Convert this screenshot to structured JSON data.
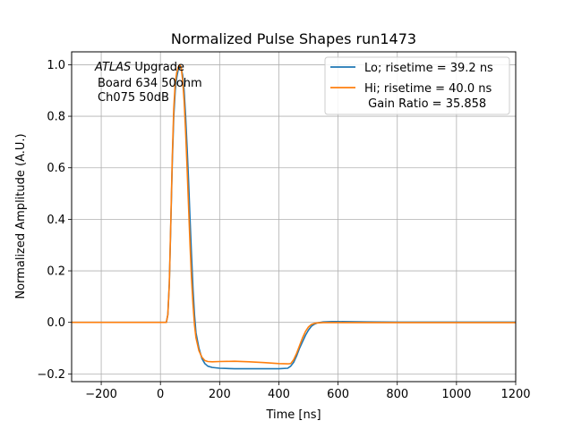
{
  "chart_data": {
    "type": "line",
    "title": "Normalized Pulse Shapes run1473",
    "xlabel": "Time [ns]",
    "ylabel": "Normalized Amplitude (A.U.)",
    "xlim": [
      -300,
      1200
    ],
    "ylim": [
      -0.23,
      1.05
    ],
    "xticks": [
      -200,
      0,
      200,
      400,
      600,
      800,
      1000,
      1200
    ],
    "yticks": [
      -0.2,
      0.0,
      0.2,
      0.4,
      0.6,
      0.8,
      1.0
    ],
    "grid": true,
    "legend_position": "top-right",
    "annotation": {
      "italic": "ATLAS",
      "rest": " Upgrade",
      "line2": "Board 634 50ohm",
      "line3": "Ch075 50dB"
    },
    "series": [
      {
        "name": "Lo; risetime = 39.2 ns",
        "color": "#1f77b4",
        "x": [
          -300,
          0,
          20,
          25,
          30,
          35,
          40,
          45,
          50,
          55,
          60,
          65,
          70,
          75,
          80,
          85,
          90,
          95,
          100,
          105,
          110,
          115,
          120,
          130,
          140,
          150,
          160,
          175,
          200,
          250,
          300,
          350,
          400,
          430,
          440,
          450,
          460,
          470,
          480,
          490,
          500,
          510,
          520,
          530,
          550,
          580,
          600,
          700,
          800,
          1000,
          1200
        ],
        "y": [
          0.0,
          0.0,
          0.0,
          0.03,
          0.15,
          0.38,
          0.62,
          0.8,
          0.9,
          0.95,
          0.98,
          0.99,
          0.985,
          0.96,
          0.9,
          0.8,
          0.68,
          0.55,
          0.4,
          0.26,
          0.13,
          0.03,
          -0.04,
          -0.1,
          -0.14,
          -0.16,
          -0.17,
          -0.175,
          -0.178,
          -0.18,
          -0.18,
          -0.18,
          -0.18,
          -0.178,
          -0.17,
          -0.155,
          -0.13,
          -0.1,
          -0.075,
          -0.05,
          -0.03,
          -0.015,
          -0.007,
          -0.002,
          0.002,
          0.003,
          0.003,
          0.002,
          0.001,
          0.001,
          0.001
        ]
      },
      {
        "name": "Hi; risetime = 40.0 ns\n Gain Ratio = 35.858",
        "color": "#ff7f0e",
        "x": [
          -300,
          0,
          20,
          25,
          30,
          35,
          40,
          45,
          50,
          55,
          60,
          65,
          70,
          75,
          80,
          85,
          90,
          95,
          100,
          105,
          110,
          115,
          120,
          130,
          140,
          150,
          160,
          175,
          200,
          250,
          300,
          350,
          400,
          430,
          440,
          450,
          460,
          470,
          480,
          490,
          500,
          510,
          520,
          530,
          550,
          580,
          600,
          700,
          800,
          1000,
          1200
        ],
        "y": [
          0.0,
          0.0,
          0.0,
          0.03,
          0.15,
          0.39,
          0.64,
          0.83,
          0.93,
          0.97,
          0.99,
          1.0,
          0.99,
          0.94,
          0.86,
          0.74,
          0.6,
          0.45,
          0.3,
          0.17,
          0.07,
          -0.01,
          -0.06,
          -0.11,
          -0.135,
          -0.148,
          -0.152,
          -0.153,
          -0.152,
          -0.151,
          -0.153,
          -0.156,
          -0.16,
          -0.161,
          -0.16,
          -0.145,
          -0.12,
          -0.09,
          -0.06,
          -0.035,
          -0.018,
          -0.008,
          -0.004,
          -0.002,
          -0.001,
          -0.001,
          -0.001,
          -0.001,
          -0.001,
          -0.001,
          -0.001
        ]
      }
    ]
  }
}
